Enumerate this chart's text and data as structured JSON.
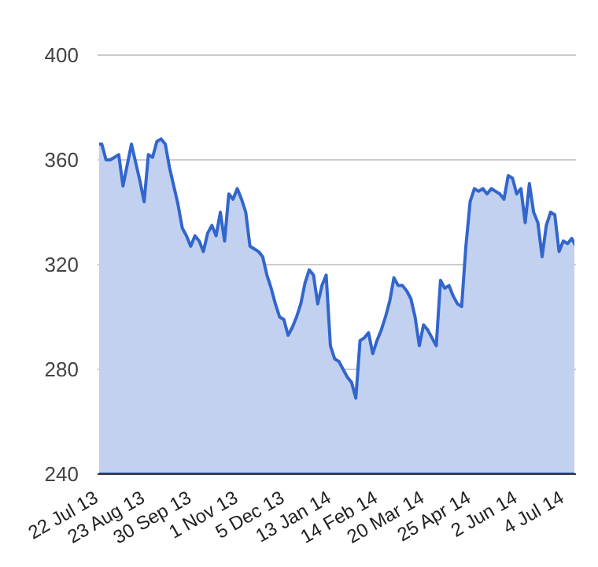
{
  "chart_data": {
    "type": "area",
    "color": "#3366cc",
    "categories": [
      "22 Jul 13",
      null,
      null,
      null,
      null,
      null,
      null,
      null,
      null,
      null,
      null,
      "23 Aug 13",
      null,
      null,
      null,
      null,
      null,
      null,
      null,
      null,
      null,
      null,
      "30 Sep 13",
      null,
      null,
      null,
      null,
      null,
      null,
      null,
      null,
      null,
      null,
      "1 Nov 13",
      null,
      null,
      null,
      null,
      null,
      null,
      null,
      null,
      null,
      null,
      "5 Dec 13",
      null,
      null,
      null,
      null,
      null,
      null,
      null,
      null,
      null,
      null,
      "13 Jan 14",
      null,
      null,
      null,
      null,
      null,
      null,
      null,
      null,
      null,
      null,
      "14 Feb 14",
      null,
      null,
      null,
      null,
      null,
      null,
      null,
      null,
      null,
      null,
      "20 Mar 14",
      null,
      null,
      null,
      null,
      null,
      null,
      null,
      null,
      null,
      null,
      "25 Apr 14",
      null,
      null,
      null,
      null,
      null,
      null,
      null,
      null,
      null,
      null,
      "2 Jun 14",
      null,
      null,
      null,
      null,
      null,
      null,
      null,
      null,
      null,
      null,
      "4 Jul 14",
      null,
      null,
      null
    ],
    "values": [
      366,
      366,
      360,
      360,
      361,
      362,
      350,
      358,
      366,
      359,
      352,
      344,
      362,
      361,
      367,
      368,
      366,
      357,
      350,
      343,
      334,
      331,
      327,
      331,
      329,
      325,
      332,
      335,
      331,
      340,
      329,
      347,
      345,
      349,
      345,
      340,
      327,
      326,
      325,
      323,
      316,
      311,
      305,
      300,
      299,
      293,
      296,
      300,
      305,
      313,
      318,
      316,
      305,
      312,
      316,
      289,
      284,
      283,
      280,
      277,
      275,
      269,
      291,
      292,
      294,
      286,
      291,
      295,
      300,
      306,
      315,
      312,
      312,
      310,
      307,
      300,
      289,
      297,
      295,
      292,
      289,
      314,
      311,
      312,
      308,
      305,
      304,
      327,
      344,
      349,
      348,
      349,
      347,
      349,
      348,
      347,
      345,
      354,
      353,
      347,
      349,
      336,
      351,
      340,
      336,
      323,
      335,
      340,
      339,
      325,
      329,
      328,
      330,
      327
    ],
    "ylim": [
      240,
      400
    ],
    "yticks": [
      240,
      280,
      320,
      360,
      400
    ],
    "grid": "y"
  }
}
